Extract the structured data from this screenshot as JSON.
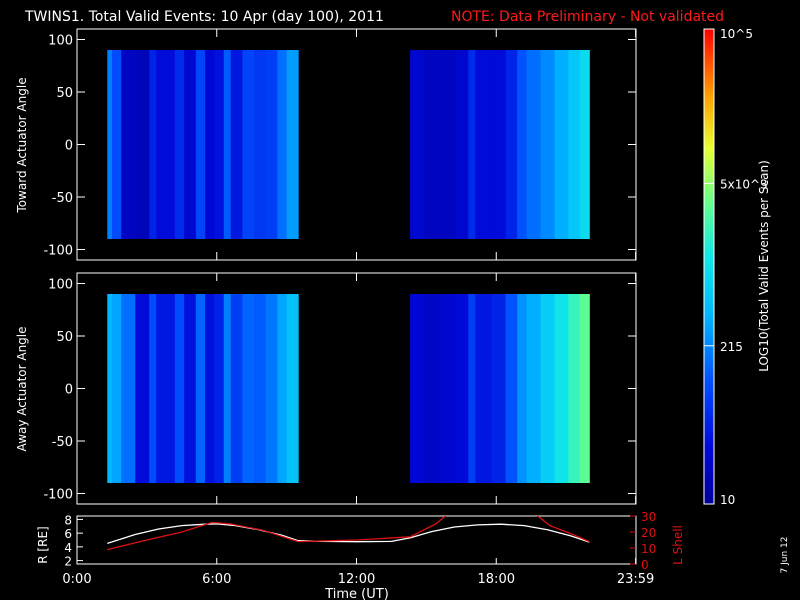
{
  "header": {
    "title": "TWINS1. Total Valid Events: 10 Apr (day 100), 2011",
    "note": "NOTE: Data Preliminary - Not validated"
  },
  "date_stamp": "7 Jun 12",
  "colors": {
    "note": "#ff1a1a",
    "rshell": "#ffffff",
    "lshell": "#dd1111",
    "frame": "#ffffff"
  },
  "colorbar": {
    "label": "LOG10(Total Valid Events per Scan)",
    "ticks": [
      {
        "label": "10",
        "value": 10
      },
      {
        "label": "215",
        "value": 215
      },
      {
        "label": "5x10^3",
        "value": 5000
      },
      {
        "label": "10^5",
        "value": 100000
      }
    ],
    "range": [
      10,
      100000
    ],
    "scale": "log"
  },
  "time_axis": {
    "xlabel": "Time (UT)",
    "ticks": [
      "0:00",
      "6:00",
      "12:00",
      "18:00",
      "23:59"
    ],
    "tick_hours": [
      0,
      6,
      12,
      18,
      23.983
    ]
  },
  "chart_data": [
    {
      "type": "heatmap",
      "ylabel": "Toward Actuator Angle",
      "xlim": [
        0,
        24
      ],
      "ylim": [
        -110,
        110
      ],
      "yticks": [
        100,
        50,
        0,
        -50,
        -100
      ],
      "data_y_range": [
        -90,
        90
      ],
      "x_unit": "hours UT",
      "data_segments": [
        [
          1.3,
          9.5
        ],
        [
          14.3,
          22.0
        ]
      ],
      "columns": [
        {
          "t": 1.3,
          "lv": 2.3
        },
        {
          "t": 1.5,
          "lv": 2.0
        },
        {
          "t": 1.9,
          "lv": 1.3
        },
        {
          "t": 2.5,
          "lv": 1.25
        },
        {
          "t": 3.1,
          "lv": 1.7
        },
        {
          "t": 3.4,
          "lv": 1.5
        },
        {
          "t": 4.2,
          "lv": 1.75
        },
        {
          "t": 4.6,
          "lv": 1.4
        },
        {
          "t": 5.1,
          "lv": 1.95
        },
        {
          "t": 5.5,
          "lv": 1.45
        },
        {
          "t": 5.9,
          "lv": 1.55
        },
        {
          "t": 6.3,
          "lv": 2.1
        },
        {
          "t": 6.6,
          "lv": 1.6
        },
        {
          "t": 7.1,
          "lv": 1.95
        },
        {
          "t": 7.6,
          "lv": 1.85
        },
        {
          "t": 8.1,
          "lv": 1.9
        },
        {
          "t": 8.6,
          "lv": 2.2
        },
        {
          "t": 9.0,
          "lv": 2.45
        },
        {
          "t": 14.3,
          "lv": 1.4
        },
        {
          "t": 14.9,
          "lv": 1.3
        },
        {
          "t": 15.6,
          "lv": 1.3
        },
        {
          "t": 16.3,
          "lv": 1.4
        },
        {
          "t": 16.8,
          "lv": 1.75
        },
        {
          "t": 17.1,
          "lv": 1.5
        },
        {
          "t": 17.8,
          "lv": 1.5
        },
        {
          "t": 18.4,
          "lv": 1.7
        },
        {
          "t": 18.9,
          "lv": 2.05
        },
        {
          "t": 19.3,
          "lv": 2.2
        },
        {
          "t": 19.9,
          "lv": 2.35
        },
        {
          "t": 20.5,
          "lv": 2.55
        },
        {
          "t": 21.1,
          "lv": 2.75
        },
        {
          "t": 21.6,
          "lv": 2.95
        }
      ]
    },
    {
      "type": "heatmap",
      "ylabel": "Away Actuator Angle",
      "xlim": [
        0,
        24
      ],
      "ylim": [
        -110,
        110
      ],
      "yticks": [
        100,
        50,
        0,
        -50,
        -100
      ],
      "data_y_range": [
        -90,
        90
      ],
      "x_unit": "hours UT",
      "data_segments": [
        [
          1.3,
          9.5
        ],
        [
          14.3,
          22.0
        ]
      ],
      "columns": [
        {
          "t": 1.3,
          "lv": 2.6
        },
        {
          "t": 1.5,
          "lv": 2.5
        },
        {
          "t": 1.9,
          "lv": 2.2
        },
        {
          "t": 2.5,
          "lv": 1.5
        },
        {
          "t": 3.1,
          "lv": 2.0
        },
        {
          "t": 3.4,
          "lv": 1.6
        },
        {
          "t": 4.2,
          "lv": 2.0
        },
        {
          "t": 4.6,
          "lv": 1.55
        },
        {
          "t": 5.1,
          "lv": 2.15
        },
        {
          "t": 5.5,
          "lv": 1.55
        },
        {
          "t": 5.9,
          "lv": 1.7
        },
        {
          "t": 6.3,
          "lv": 2.3
        },
        {
          "t": 6.6,
          "lv": 1.9
        },
        {
          "t": 7.1,
          "lv": 2.15
        },
        {
          "t": 7.6,
          "lv": 2.1
        },
        {
          "t": 8.1,
          "lv": 2.25
        },
        {
          "t": 8.6,
          "lv": 2.5
        },
        {
          "t": 9.0,
          "lv": 2.7
        },
        {
          "t": 14.3,
          "lv": 1.45
        },
        {
          "t": 14.9,
          "lv": 1.35
        },
        {
          "t": 15.6,
          "lv": 1.4
        },
        {
          "t": 16.3,
          "lv": 1.5
        },
        {
          "t": 16.8,
          "lv": 1.9
        },
        {
          "t": 17.1,
          "lv": 1.6
        },
        {
          "t": 17.8,
          "lv": 1.7
        },
        {
          "t": 18.4,
          "lv": 2.05
        },
        {
          "t": 18.9,
          "lv": 2.4
        },
        {
          "t": 19.3,
          "lv": 2.55
        },
        {
          "t": 19.9,
          "lv": 2.8
        },
        {
          "t": 20.5,
          "lv": 3.05
        },
        {
          "t": 21.1,
          "lv": 3.3
        },
        {
          "t": 21.6,
          "lv": 3.5
        }
      ]
    },
    {
      "type": "line",
      "xlim": [
        0,
        24
      ],
      "left_axis": {
        "label": "R [RE]",
        "ticks": [
          2,
          4,
          6,
          8
        ],
        "ylim": [
          1.5,
          8.5
        ]
      },
      "right_axis": {
        "label": "L Shell",
        "ticks": [
          0,
          10,
          20,
          30
        ],
        "ylim": [
          0,
          30
        ]
      },
      "series": [
        {
          "axis": "left",
          "color": "#ffffff",
          "x": [
            1.3,
            2.5,
            3.5,
            4.5,
            5.5,
            6.0,
            6.8,
            7.8,
            8.8,
            9.5,
            10.5,
            12.0,
            13.5,
            14.3,
            15.2,
            16.2,
            17.2,
            18.2,
            19.2,
            20.2,
            21.2,
            22.0
          ],
          "y": [
            4.5,
            5.8,
            6.6,
            7.1,
            7.3,
            7.35,
            7.1,
            6.5,
            5.7,
            4.9,
            4.8,
            4.75,
            4.8,
            5.3,
            6.2,
            6.9,
            7.2,
            7.3,
            7.1,
            6.5,
            5.6,
            4.7
          ]
        },
        {
          "axis": "right",
          "color": "#dd1111",
          "x": [
            1.3,
            3.0,
            4.5,
            5.8,
            6.6,
            8.0,
            9.5,
            12.0,
            14.3,
            15.4,
            15.9,
            19.7,
            20.3,
            21.2,
            22.0
          ],
          "y": [
            9,
            15,
            20,
            26,
            25,
            21,
            14,
            15,
            17,
            25,
            31,
            31,
            24,
            19,
            14
          ]
        }
      ]
    }
  ]
}
